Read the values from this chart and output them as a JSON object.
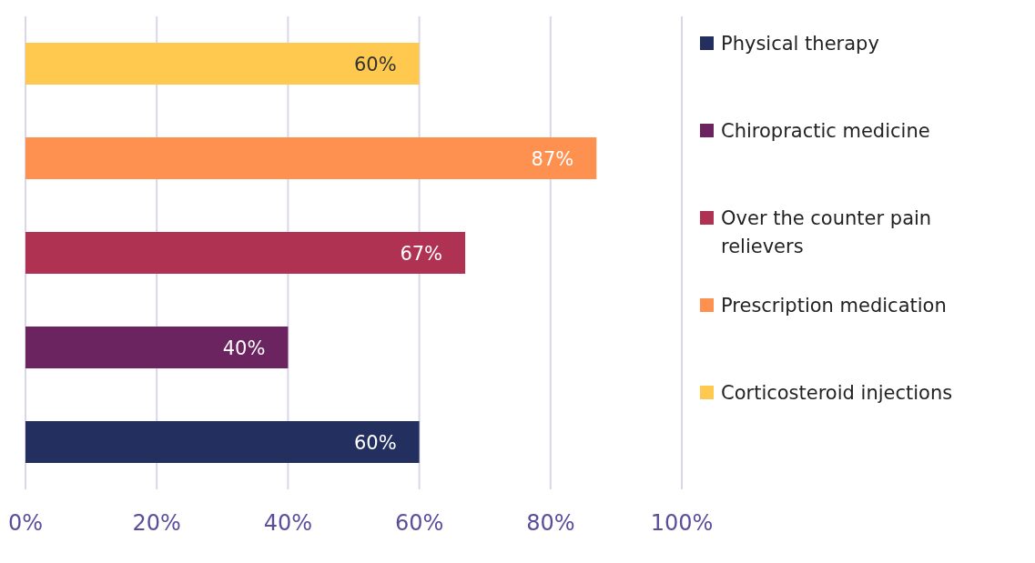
{
  "chart_data": {
    "type": "bar",
    "orientation": "horizontal",
    "stacked": true,
    "categories": [
      null,
      null,
      null,
      null,
      null
    ],
    "series": [
      {
        "name": "Physical therapy",
        "color": "#232f5e",
        "values": [
          null,
          null,
          null,
          null,
          60
        ],
        "value_labels": [
          null,
          null,
          null,
          null,
          "60%"
        ]
      },
      {
        "name": "Chiropractic medicine",
        "color": "#6b2460",
        "values": [
          null,
          null,
          null,
          40,
          null
        ],
        "value_labels": [
          null,
          null,
          null,
          "40%",
          null
        ]
      },
      {
        "name": "Over the counter pain relievers",
        "color": "#b03252",
        "values": [
          null,
          null,
          67,
          null,
          null
        ],
        "value_labels": [
          null,
          null,
          "67%",
          null,
          null
        ]
      },
      {
        "name": "Prescription medication",
        "color": "#ff9150",
        "values": [
          null,
          87,
          null,
          null,
          null
        ],
        "value_labels": [
          null,
          "87%",
          null,
          null,
          null
        ]
      },
      {
        "name": "Corticosteroid injections",
        "color": "#ffc94f",
        "values": [
          60,
          null,
          null,
          null,
          null
        ],
        "value_labels": [
          "60%",
          null,
          null,
          null,
          null
        ]
      }
    ],
    "xlim": [
      0,
      100
    ],
    "xticks": [
      {
        "value": 0,
        "label": "0%"
      },
      {
        "value": 20,
        "label": "20%"
      },
      {
        "value": 40,
        "label": "40%"
      },
      {
        "value": 60,
        "label": "60%"
      },
      {
        "value": 80,
        "label": "80%"
      },
      {
        "value": 100,
        "label": "100%"
      }
    ],
    "grid": "x",
    "legend": "right"
  }
}
